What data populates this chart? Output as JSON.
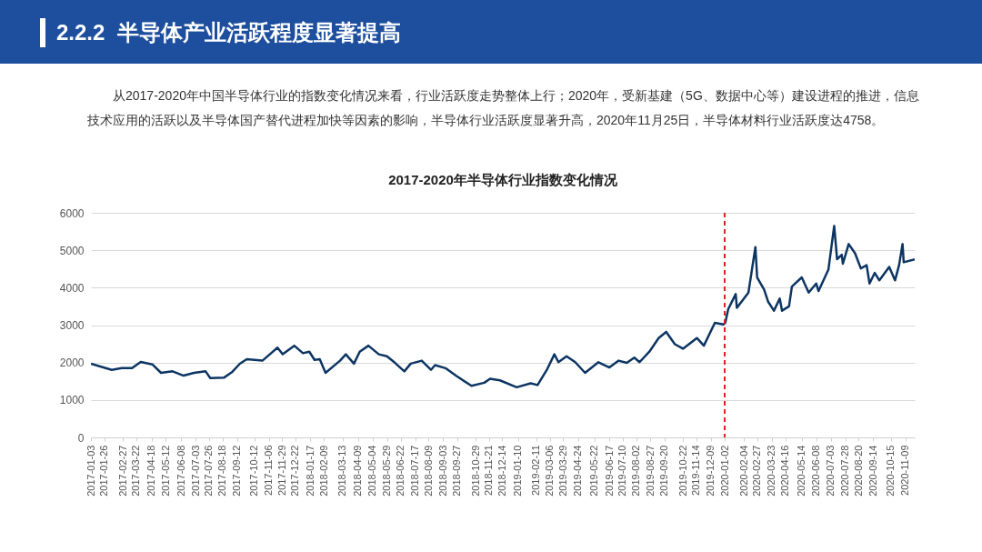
{
  "chart_data": {
    "type": "line",
    "title": "2017-2020年半导体行业指数变化情况",
    "annotations": [
      "2.2.2  半导体产业活跃程度显著提高",
      "从2017-2020年中国半导体行业的指数变化情况来看，行业活跃度走势整体上行；2020年，受新基建（5G、数据中心等）建设进程的推进，信息技术应用的活跃以及半导体国产替代进程加快等因素的影响，半导体行业活跃度显著升高，2020年11月25日，半导体材料行业活跃度达4758。"
    ],
    "x": [
      "2017-01-03",
      "2017-02-08",
      "2017-02-25",
      "2017-03-15",
      "2017-03-30",
      "2017-04-19",
      "2017-05-04",
      "2017-05-24",
      "2017-06-12",
      "2017-06-30",
      "2017-07-20",
      "2017-07-28",
      "2017-08-21",
      "2017-09-04",
      "2017-09-17",
      "2017-09-29",
      "2017-10-26",
      "2017-11-10",
      "2017-11-21",
      "2017-11-30",
      "2017-12-20",
      "2018-01-04",
      "2018-01-15",
      "2018-01-24",
      "2018-02-02",
      "2018-02-12",
      "2018-03-09",
      "2018-03-19",
      "2018-04-02",
      "2018-04-12",
      "2018-04-27",
      "2018-05-15",
      "2018-05-29",
      "2018-06-12",
      "2018-06-28",
      "2018-07-09",
      "2018-07-28",
      "2018-08-13",
      "2018-08-20",
      "2018-09-07",
      "2018-09-25",
      "2018-10-22",
      "2018-11-13",
      "2018-11-23",
      "2018-12-10",
      "2019-01-08",
      "2019-02-01",
      "2019-02-13",
      "2019-03-01",
      "2019-03-14",
      "2019-03-21",
      "2019-04-04",
      "2019-04-19",
      "2019-05-06",
      "2019-05-29",
      "2019-06-17",
      "2019-07-03",
      "2019-07-17",
      "2019-07-30",
      "2019-08-08",
      "2019-08-25",
      "2019-09-10",
      "2019-09-23",
      "2019-10-08",
      "2019-10-22",
      "2019-11-15",
      "2019-11-27",
      "2019-12-16",
      "2019-12-31",
      "2020-01-03",
      "2020-01-08",
      "2020-01-21",
      "2020-01-23",
      "2020-02-12",
      "2020-02-24",
      "2020-02-27",
      "2020-03-10",
      "2020-03-17",
      "2020-03-27",
      "2020-04-06",
      "2020-04-10",
      "2020-04-22",
      "2020-04-27",
      "2020-05-14",
      "2020-05-26",
      "2020-06-08",
      "2020-06-12",
      "2020-06-29",
      "2020-07-09",
      "2020-07-14",
      "2020-07-22",
      "2020-07-24",
      "2020-08-03",
      "2020-08-14",
      "2020-08-24",
      "2020-09-03",
      "2020-09-08",
      "2020-09-17",
      "2020-09-25",
      "2020-10-12",
      "2020-10-22",
      "2020-10-29",
      "2020-11-04",
      "2020-11-06",
      "2020-11-25"
    ],
    "series": [
      {
        "color": "#0d3563",
        "values": [
          1970,
          1805,
          1850,
          1850,
          2015,
          1950,
          1725,
          1765,
          1650,
          1725,
          1765,
          1587,
          1600,
          1750,
          1967,
          2090,
          2050,
          2250,
          2400,
          2220,
          2450,
          2250,
          2290,
          2070,
          2090,
          1725,
          2050,
          2220,
          1970,
          2290,
          2450,
          2220,
          2170,
          1990,
          1765,
          1970,
          2050,
          1805,
          1930,
          1850,
          1650,
          1377,
          1460,
          1565,
          1525,
          1340,
          1445,
          1400,
          1805,
          2220,
          2010,
          2170,
          2010,
          1725,
          2010,
          1870,
          2050,
          1990,
          2130,
          2010,
          2290,
          2655,
          2820,
          2490,
          2370,
          2655,
          2450,
          3060,
          3020,
          3060,
          3425,
          3830,
          3460,
          3870,
          5085,
          4275,
          3950,
          3625,
          3385,
          3710,
          3385,
          3500,
          4030,
          4275,
          3870,
          4110,
          3910,
          4480,
          5650,
          4760,
          4880,
          4640,
          5165,
          4920,
          4515,
          4600,
          4110,
          4395,
          4195,
          4555,
          4195,
          4600,
          5165,
          4680,
          4758
        ]
      }
    ],
    "xlim": [
      "2017-01-03",
      "2020-11-25"
    ],
    "xticks": [
      "2017-01-03",
      "2017-01-26",
      "2017-02-27",
      "2017-03-22",
      "2017-04-18",
      "2017-05-12",
      "2017-06-08",
      "2017-07-03",
      "2017-07-26",
      "2017-08-18",
      "2017-09-12",
      "2017-10-12",
      "2017-11-06",
      "2017-11-29",
      "2017-12-22",
      "2018-01-17",
      "2018-02-09",
      "2018-03-13",
      "2018-04-09",
      "2018-05-04",
      "2018-05-29",
      "2018-06-22",
      "2018-07-17",
      "2018-08-09",
      "2018-09-03",
      "2018-09-27",
      "2018-10-29",
      "2018-11-21",
      "2018-12-14",
      "2019-01-10",
      "2019-02-11",
      "2019-03-06",
      "2019-03-29",
      "2019-04-24",
      "2019-05-22",
      "2019-06-17",
      "2019-07-10",
      "2019-08-02",
      "2019-08-27",
      "2019-09-20",
      "2019-10-22",
      "2019-11-14",
      "2019-12-09",
      "2020-01-02",
      "2020-02-04",
      "2020-02-27",
      "2020-03-23",
      "2020-04-16",
      "2020-05-14",
      "2020-06-08",
      "2020-07-03",
      "2020-07-28",
      "2020-08-20",
      "2020-09-14",
      "2020-10-15",
      "2020-11-09"
    ],
    "ylim": [
      0,
      6000
    ],
    "yticks": [
      0,
      1000,
      2000,
      3000,
      4000,
      5000,
      6000
    ],
    "grid": "y",
    "ref_lines": [
      {
        "axis": "x",
        "value": "2020-01-02",
        "color": "#e02020",
        "line_style": "dashed"
      }
    ]
  }
}
